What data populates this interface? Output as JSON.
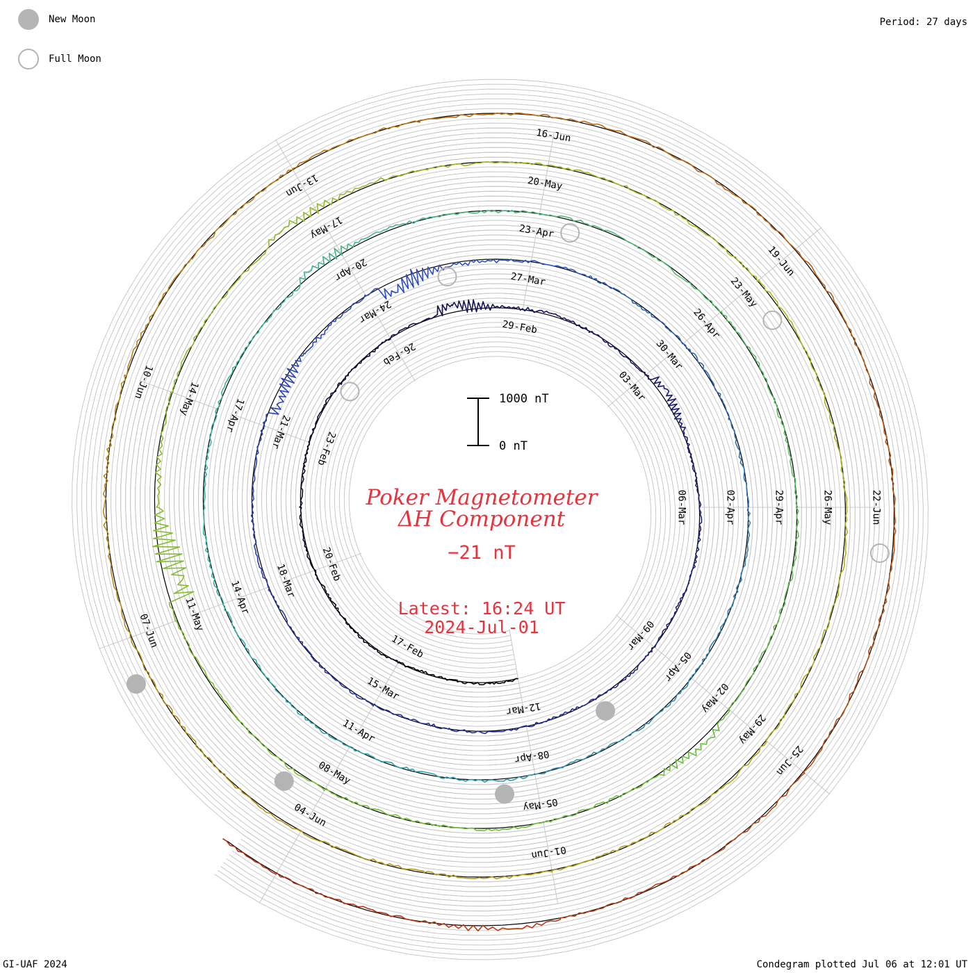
{
  "header": {
    "new_moon_label": "New Moon",
    "full_moon_label": "Full Moon",
    "period_label": "Period: 27 days"
  },
  "footer": {
    "credit": "GI-UAF 2024",
    "plotted": "Condegram plotted Jul 06 at 12:01 UT"
  },
  "center": {
    "title_line1": "Poker Magnetometer",
    "title_line2": "ΔH Component",
    "value": "−21 nT",
    "latest_line1": "Latest: 16:24 UT",
    "latest_line2": "2024-Jul-01",
    "scale_top": "1000 nT",
    "scale_bottom": "0 nT"
  },
  "colors": {
    "title_red": "#e8323c",
    "grid": "#c8c8c8",
    "moon_fill": "#b4b4b4"
  },
  "chart_data": {
    "type": "line",
    "subtype": "condegram-spiral",
    "period_days": 27,
    "start_date": "2024-02-14",
    "end_date": "2024-07-01",
    "y_units": "nT",
    "scale_bar": [
      0,
      1000
    ],
    "date_labels": [
      "17-Feb",
      "20-Feb",
      "23-Feb",
      "26-Feb",
      "29-Feb",
      "03-Mar",
      "06-Mar",
      "09-Mar",
      "12-Mar",
      "15-Mar",
      "18-Mar",
      "21-Mar",
      "24-Mar",
      "27-Mar",
      "30-Mar",
      "02-Apr",
      "05-Apr",
      "08-Apr",
      "11-Apr",
      "14-Apr",
      "17-Apr",
      "20-Apr",
      "23-Apr",
      "26-Apr",
      "29-Apr",
      "02-May",
      "05-May",
      "08-May",
      "11-May",
      "14-May",
      "17-May",
      "20-May",
      "23-May",
      "26-May",
      "29-May",
      "01-Jun",
      "04-Jun",
      "07-Jun",
      "10-Jun",
      "13-Jun",
      "16-Jun",
      "19-Jun",
      "22-Jun",
      "25-Jun"
    ],
    "new_moons": [
      "2024-03-10",
      "2024-04-08",
      "2024-05-08",
      "2024-06-06"
    ],
    "full_moons": [
      "2024-02-24",
      "2024-03-25",
      "2024-04-23",
      "2024-05-23",
      "2024-06-22"
    ],
    "activity_events": [
      {
        "date": "2024-02-27",
        "delta_nT": 420
      },
      {
        "date": "2024-03-03",
        "delta_nT": 300
      },
      {
        "date": "2024-03-21",
        "delta_nT": -450
      },
      {
        "date": "2024-03-24",
        "delta_nT": -600
      },
      {
        "date": "2024-04-19",
        "delta_nT": 300
      },
      {
        "date": "2024-05-02",
        "delta_nT": 250
      },
      {
        "date": "2024-05-11",
        "delta_nT": -1000
      },
      {
        "date": "2024-05-16",
        "delta_nT": 300
      },
      {
        "date": "2024-06-08",
        "delta_nT": 150
      },
      {
        "date": "2024-06-28",
        "delta_nT": 150
      }
    ],
    "current_value_nT": -21,
    "series_color_ramp": [
      "#000000",
      "#1c1c7e",
      "#2d4ec0",
      "#2fb3a8",
      "#6cc03a",
      "#a8b81e",
      "#c07a10",
      "#b42a10"
    ]
  }
}
